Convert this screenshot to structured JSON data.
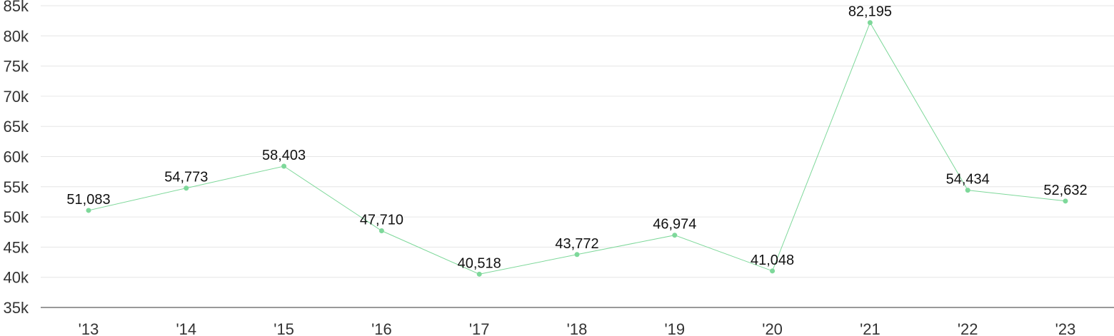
{
  "chart_data": {
    "type": "line",
    "title": "",
    "xlabel": "",
    "ylabel": "",
    "categories": [
      "'13",
      "'14",
      "'15",
      "'16",
      "'17",
      "'18",
      "'19",
      "'20",
      "'21",
      "'22",
      "'23"
    ],
    "series": [
      {
        "values": [
          51083,
          54773,
          58403,
          47710,
          40518,
          43772,
          46974,
          41048,
          82195,
          54434,
          52632
        ],
        "labels": [
          "51,083",
          "54,773",
          "58,403",
          "47,710",
          "40,518",
          "43,772",
          "46,974",
          "41,048",
          "82,195",
          "54,434",
          "52,632"
        ],
        "color": "#7ed89a"
      }
    ],
    "ylim": [
      35000,
      85000
    ],
    "yticks": [
      35000,
      40000,
      45000,
      50000,
      55000,
      60000,
      65000,
      70000,
      75000,
      80000,
      85000
    ],
    "ytick_labels": [
      "35k",
      "40k",
      "45k",
      "50k",
      "55k",
      "60k",
      "65k",
      "70k",
      "75k",
      "80k",
      "85k"
    ],
    "grid": true,
    "legend": "none",
    "line_color": "#7ed89a",
    "grid_color": "#e6e6e6"
  }
}
